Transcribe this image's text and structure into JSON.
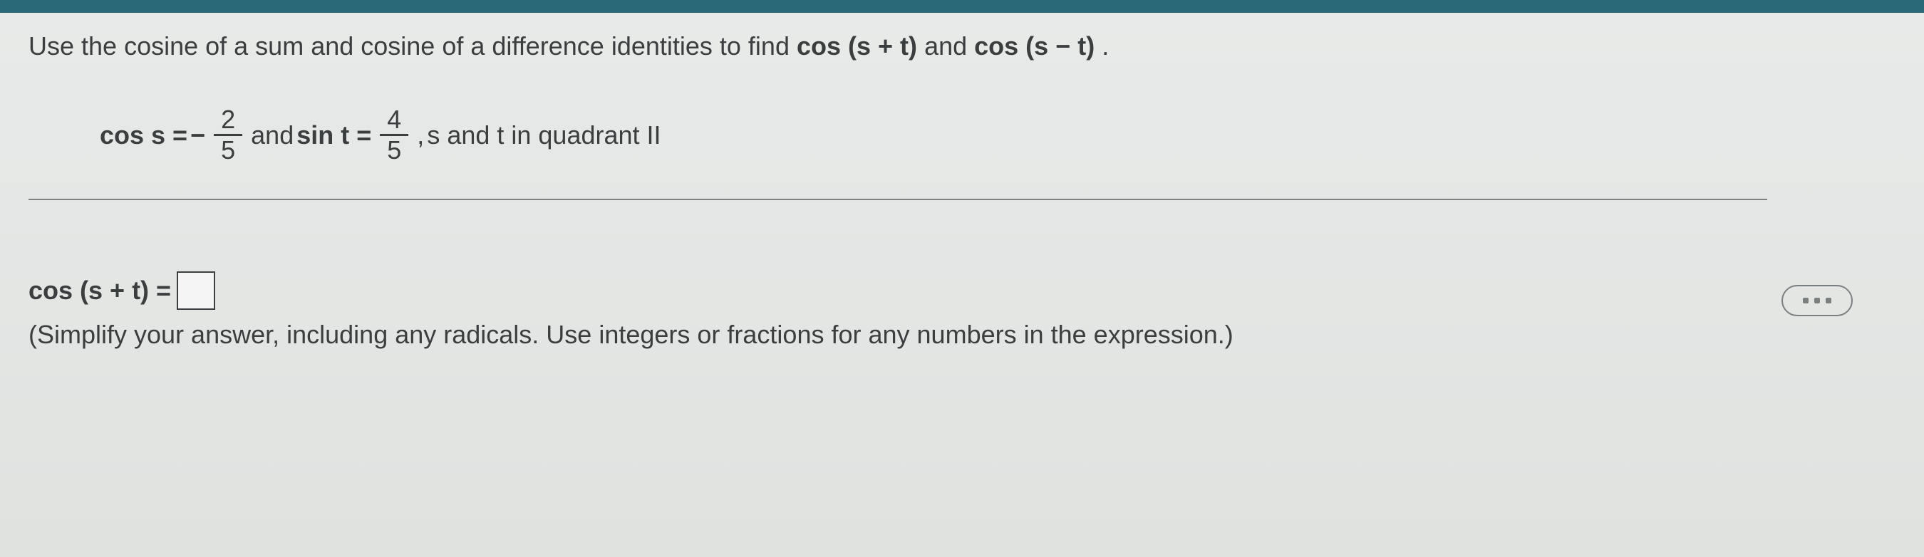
{
  "instruction": {
    "prefix": "Use the cosine of a sum and cosine of a difference identities to find ",
    "expr1": "cos (s + t)",
    "mid": " and ",
    "expr2": "cos (s − t)",
    "suffix": "."
  },
  "given": {
    "cos_label": "cos s =",
    "minus": " − ",
    "frac1_num": "2",
    "frac1_den": "5",
    "and": " and ",
    "sin_label": "sin t = ",
    "frac2_num": "4",
    "frac2_den": "5",
    "comma": ", ",
    "quadrant": "s and t in quadrant II"
  },
  "answer": {
    "lhs": "cos (s + t) = ",
    "hint": "(Simplify your answer, including any radicals. Use integers or fractions for any numbers in the expression.)"
  },
  "colors": {
    "text": "#3a3e3f",
    "background": "#e8eae9",
    "top_bar": "#2a6a78",
    "divider": "#7a7f80"
  },
  "typography": {
    "font_family": "Arial",
    "base_fontsize_pt": 27
  }
}
